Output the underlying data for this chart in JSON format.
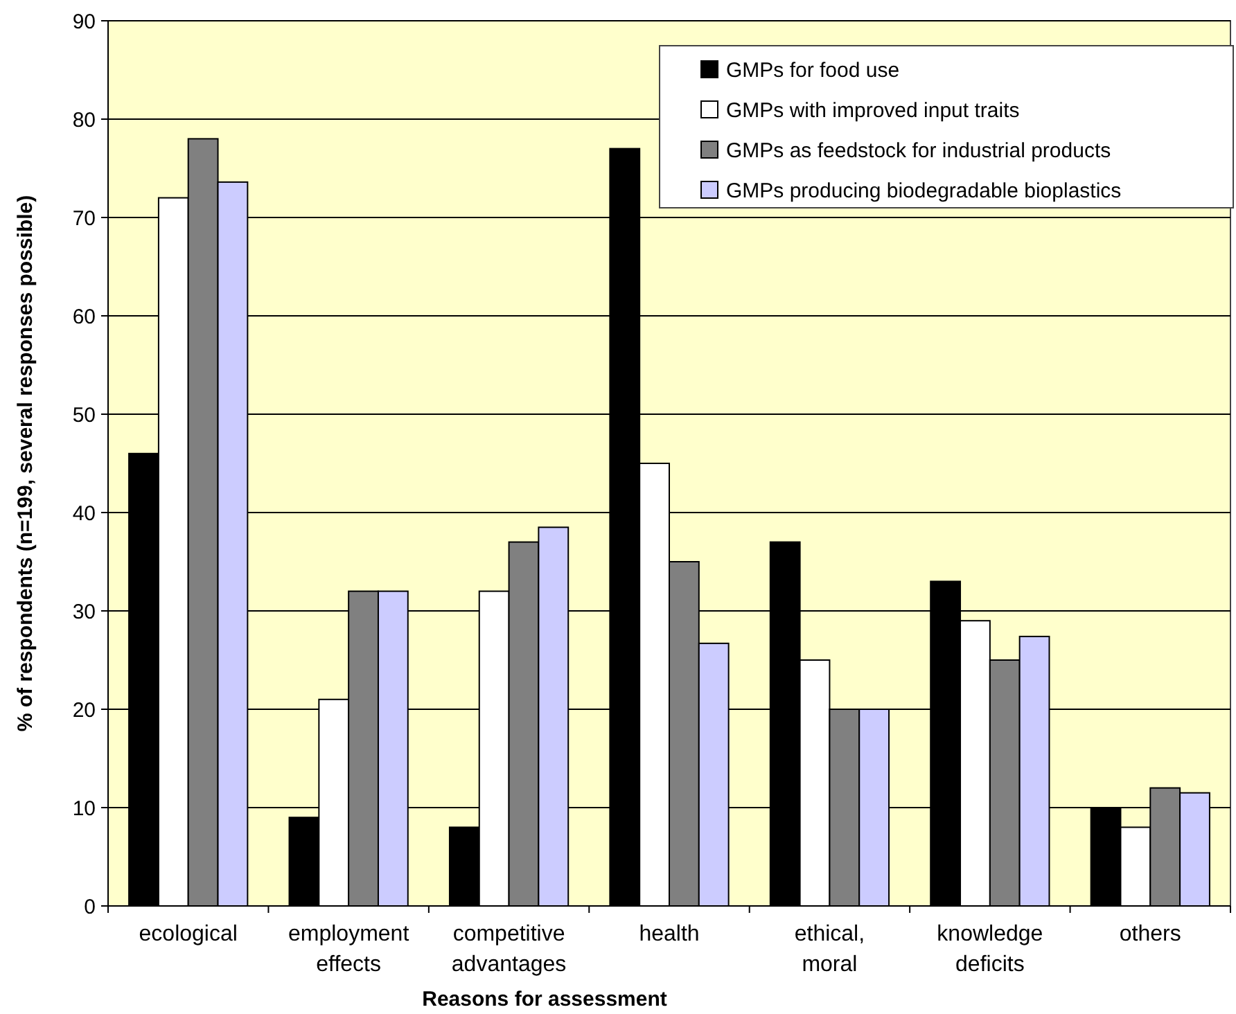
{
  "chart_data": {
    "type": "bar",
    "xlabel": "Reasons for assessment",
    "ylabel": "% of respondents (n=199, several responses possible)",
    "categories": [
      "ecological",
      "employment effects",
      "competitive advantages",
      "health",
      "ethical, moral",
      "knowledge deficits",
      "others"
    ],
    "series": [
      {
        "name": "GMPs for food use",
        "color": "#000000",
        "values": [
          46,
          9,
          8,
          77,
          37,
          33,
          10
        ]
      },
      {
        "name": "GMPs with improved input traits",
        "color": "#ffffff",
        "values": [
          72,
          21,
          32,
          45,
          25,
          29,
          8
        ]
      },
      {
        "name": "GMPs as feedstock for industrial products",
        "color": "#808080",
        "values": [
          78,
          32,
          37,
          35,
          20,
          25,
          12
        ]
      },
      {
        "name": "GMPs producing biodegradable bioplastics",
        "color": "#ccccff",
        "values": [
          73.6,
          32,
          38.5,
          26.7,
          20,
          27.4,
          11.5
        ]
      }
    ],
    "ylim": [
      0,
      90
    ],
    "yticks": [
      0,
      10,
      20,
      30,
      40,
      50,
      60,
      70,
      80,
      90
    ],
    "grid": "y",
    "legend": "top right"
  }
}
